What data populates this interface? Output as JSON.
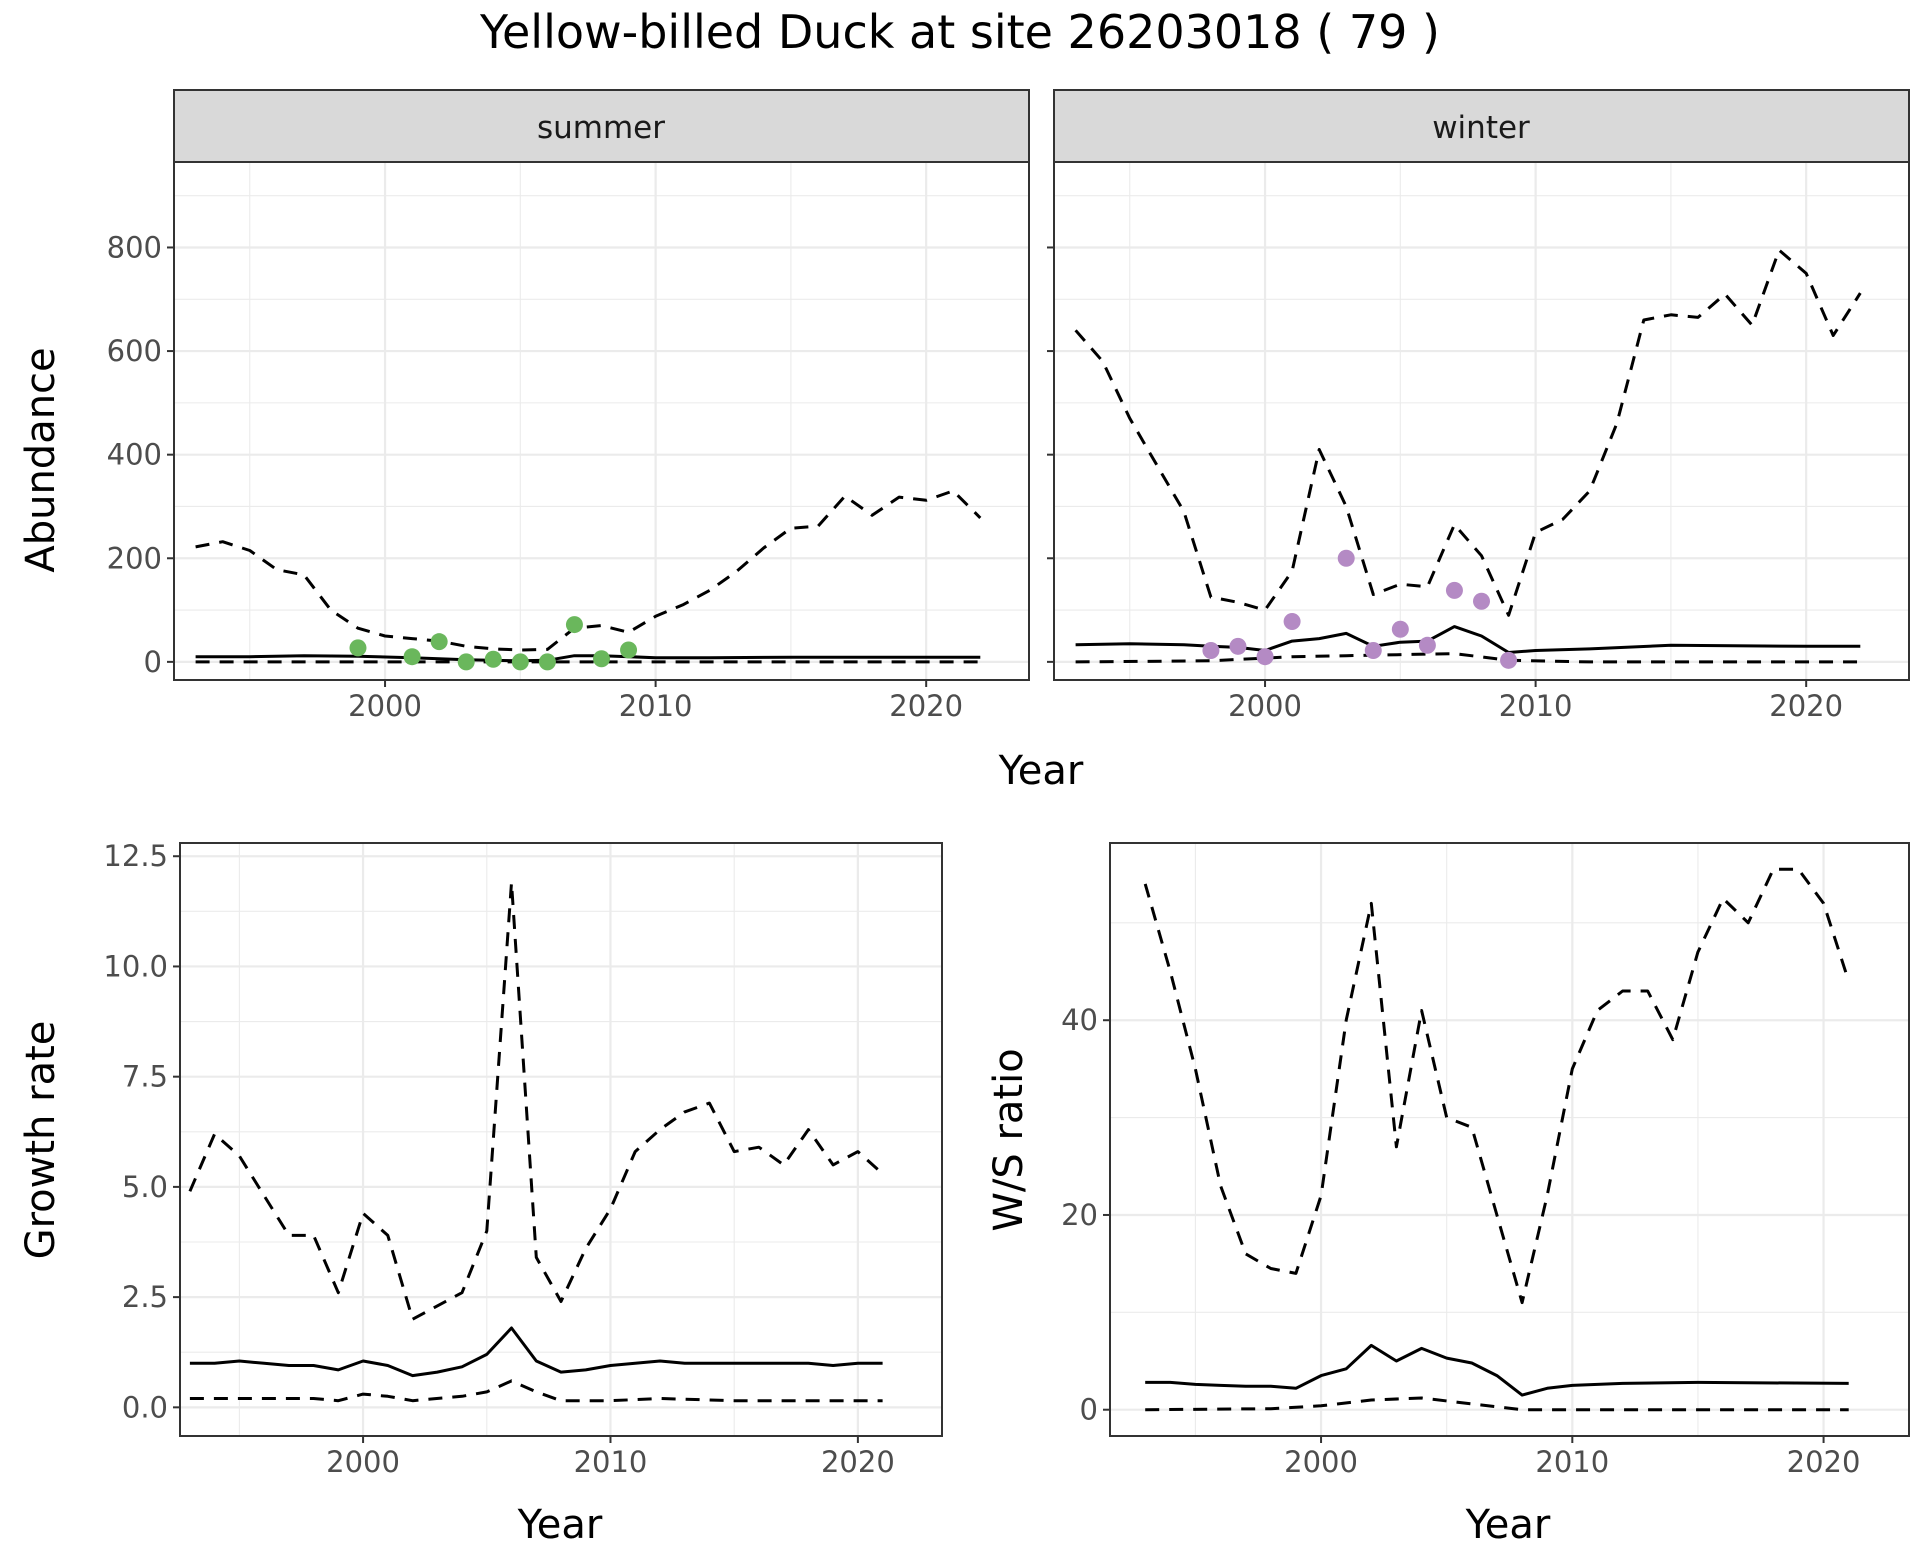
{
  "title": "Yellow-billed Duck at site 26203018 ( 79 )",
  "colors": {
    "summer_points": "#6ab75c",
    "winter_points": "#b48ac4"
  },
  "chart_data": [
    {
      "id": "abundance_summer",
      "type": "line",
      "facet": "summer",
      "xlabel": "",
      "ylabel": "Abundance",
      "xlim": [
        1992.2,
        2023.8
      ],
      "ylim": [
        -35,
        965
      ],
      "xticks": [
        2000,
        2010,
        2020
      ],
      "yticks": [
        0,
        200,
        400,
        600,
        800
      ],
      "series": [
        {
          "style": "solid",
          "x": [
            1993,
            1995,
            1997,
            1999,
            2001,
            2003,
            2005,
            2006,
            2007,
            2008,
            2010,
            2012,
            2015,
            2018,
            2022
          ],
          "y": [
            10,
            10,
            12,
            11,
            8,
            4,
            2,
            3,
            12,
            12,
            8,
            8,
            9,
            9,
            9
          ]
        },
        {
          "style": "dashed",
          "x": [
            1993,
            1994,
            1995,
            1996,
            1997,
            1998,
            1999,
            2000,
            2001,
            2002,
            2003,
            2004,
            2005,
            2006,
            2007,
            2008,
            2009,
            2010,
            2011,
            2012,
            2013,
            2014,
            2015,
            2016,
            2017,
            2018,
            2019,
            2020,
            2021,
            2022
          ],
          "y": [
            222,
            232,
            215,
            178,
            168,
            100,
            65,
            50,
            45,
            40,
            30,
            25,
            23,
            24,
            65,
            70,
            57,
            88,
            110,
            138,
            175,
            220,
            258,
            262,
            320,
            283,
            318,
            312,
            330,
            278
          ]
        },
        {
          "style": "dashed",
          "x": [
            1993,
            2000,
            2005,
            2010,
            2015,
            2022
          ],
          "y": [
            0,
            0,
            0,
            0,
            0,
            0
          ]
        }
      ],
      "points": {
        "x": [
          1999,
          2001,
          2002,
          2003,
          2004,
          2005,
          2006,
          2007,
          2008,
          2009
        ],
        "y": [
          27,
          10,
          39,
          0,
          5,
          0,
          0,
          72,
          6,
          23
        ]
      }
    },
    {
      "id": "abundance_winter",
      "type": "line",
      "facet": "winter",
      "xlabel": "",
      "ylabel": "",
      "xlim": [
        1992.2,
        2023.8
      ],
      "ylim": [
        -35,
        965
      ],
      "xticks": [
        2000,
        2010,
        2020
      ],
      "yticks": [
        0,
        200,
        400,
        600,
        800
      ],
      "series": [
        {
          "style": "solid",
          "x": [
            1993,
            1995,
            1997,
            1998,
            1999,
            2000,
            2001,
            2002,
            2003,
            2004,
            2005,
            2006,
            2007,
            2008,
            2009,
            2010,
            2012,
            2015,
            2020,
            2022
          ],
          "y": [
            33,
            35,
            33,
            30,
            28,
            22,
            40,
            45,
            55,
            30,
            38,
            40,
            68,
            50,
            18,
            22,
            25,
            32,
            30,
            30
          ]
        },
        {
          "style": "dashed",
          "x": [
            1993,
            1994,
            1995,
            1996,
            1997,
            1998,
            1999,
            2000,
            2001,
            2002,
            2003,
            2004,
            2005,
            2006,
            2007,
            2008,
            2009,
            2010,
            2011,
            2012,
            2013,
            2014,
            2015,
            2016,
            2017,
            2018,
            2019,
            2020,
            2021,
            2022
          ],
          "y": [
            640,
            580,
            470,
            380,
            290,
            125,
            115,
            100,
            175,
            410,
            300,
            130,
            150,
            145,
            265,
            205,
            90,
            250,
            275,
            330,
            460,
            660,
            670,
            665,
            710,
            650,
            795,
            750,
            630,
            712
          ]
        },
        {
          "style": "dashed",
          "x": [
            1993,
            1998,
            2001,
            2003,
            2007,
            2009,
            2012,
            2022
          ],
          "y": [
            0,
            2,
            10,
            12,
            16,
            3,
            0,
            0
          ]
        }
      ],
      "points": {
        "x": [
          1998,
          1999,
          2000,
          2001,
          2003,
          2004,
          2005,
          2006,
          2007,
          2008,
          2009
        ],
        "y": [
          22,
          30,
          10,
          78,
          200,
          22,
          63,
          32,
          138,
          117,
          3
        ]
      }
    },
    {
      "id": "growth_rate",
      "type": "line",
      "xlabel": "Year",
      "ylabel": "Growth rate",
      "xlim": [
        1992.6,
        2023.4
      ],
      "ylim": [
        -0.65,
        12.8
      ],
      "xticks": [
        2000,
        2010,
        2020
      ],
      "yticks": [
        0.0,
        2.5,
        5.0,
        7.5,
        10.0,
        12.5
      ],
      "ytick_labels": [
        "0.0",
        "2.5",
        "5.0",
        "7.5",
        "10.0",
        "12.5"
      ],
      "series": [
        {
          "style": "solid",
          "x": [
            1993,
            1994,
            1995,
            1996,
            1997,
            1998,
            1999,
            2000,
            2001,
            2002,
            2003,
            2004,
            2005,
            2006,
            2007,
            2008,
            2009,
            2010,
            2011,
            2012,
            2013,
            2014,
            2015,
            2016,
            2017,
            2018,
            2019,
            2020,
            2021
          ],
          "y": [
            1.0,
            1.0,
            1.05,
            1.0,
            0.95,
            0.95,
            0.85,
            1.05,
            0.95,
            0.72,
            0.8,
            0.92,
            1.2,
            1.8,
            1.05,
            0.8,
            0.85,
            0.95,
            1.0,
            1.05,
            1.0,
            1.0,
            1.0,
            1.0,
            1.0,
            1.0,
            0.95,
            1.0,
            1.0
          ]
        },
        {
          "style": "dashed",
          "x": [
            1993,
            1994,
            1995,
            1996,
            1997,
            1998,
            1999,
            2000,
            2001,
            2002,
            2003,
            2004,
            2005,
            2006,
            2007,
            2008,
            2009,
            2010,
            2011,
            2012,
            2013,
            2014,
            2015,
            2016,
            2017,
            2018,
            2019,
            2020,
            2021
          ],
          "y": [
            4.9,
            6.2,
            5.7,
            4.8,
            3.9,
            3.9,
            2.6,
            4.4,
            3.9,
            2.0,
            2.3,
            2.6,
            4.0,
            11.9,
            3.4,
            2.4,
            3.6,
            4.5,
            5.8,
            6.3,
            6.7,
            6.9,
            5.8,
            5.9,
            5.5,
            6.3,
            5.5,
            5.8,
            5.3
          ]
        },
        {
          "style": "dashed",
          "x": [
            1993,
            1995,
            1998,
            1999,
            2000,
            2001,
            2002,
            2004,
            2005,
            2006,
            2007,
            2008,
            2010,
            2012,
            2015,
            2021
          ],
          "y": [
            0.2,
            0.2,
            0.2,
            0.15,
            0.3,
            0.25,
            0.15,
            0.25,
            0.35,
            0.6,
            0.35,
            0.15,
            0.15,
            0.2,
            0.15,
            0.15
          ]
        }
      ]
    },
    {
      "id": "ws_ratio",
      "type": "line",
      "xlabel": "Year",
      "ylabel": "W/S ratio",
      "xlim": [
        1991.6,
        2023.4
      ],
      "ylim": [
        -2.7,
        58.2
      ],
      "xticks": [
        2000,
        2010,
        2020
      ],
      "yticks": [
        0,
        20,
        40
      ],
      "series": [
        {
          "style": "solid",
          "x": [
            1993,
            1994,
            1995,
            1996,
            1997,
            1998,
            1999,
            2000,
            2001,
            2002,
            2003,
            2004,
            2005,
            2006,
            2007,
            2008,
            2009,
            2010,
            2012,
            2015,
            2021
          ],
          "y": [
            2.8,
            2.8,
            2.6,
            2.5,
            2.4,
            2.4,
            2.2,
            3.5,
            4.2,
            6.6,
            5.0,
            6.3,
            5.3,
            4.8,
            3.5,
            1.5,
            2.2,
            2.5,
            2.7,
            2.8,
            2.7
          ]
        },
        {
          "style": "dashed",
          "x": [
            1993,
            1994,
            1995,
            1996,
            1997,
            1998,
            1999,
            2000,
            2001,
            2002,
            2003,
            2004,
            2005,
            2006,
            2007,
            2008,
            2009,
            2010,
            2011,
            2012,
            2013,
            2014,
            2015,
            2016,
            2017,
            2018,
            2019,
            2020,
            2021
          ],
          "y": [
            54,
            45,
            35,
            23,
            16,
            14.5,
            14,
            22,
            40,
            52,
            27,
            41,
            30,
            29,
            20,
            11,
            22,
            35,
            41,
            43,
            43,
            38,
            47,
            52.5,
            50,
            55.5,
            55.5,
            52,
            44
          ]
        },
        {
          "style": "dashed",
          "x": [
            1993,
            1998,
            2000,
            2002,
            2004,
            2006,
            2008,
            2009,
            2012,
            2021
          ],
          "y": [
            0,
            0.1,
            0.4,
            1.0,
            1.2,
            0.6,
            0,
            0,
            0,
            0
          ]
        }
      ]
    }
  ]
}
